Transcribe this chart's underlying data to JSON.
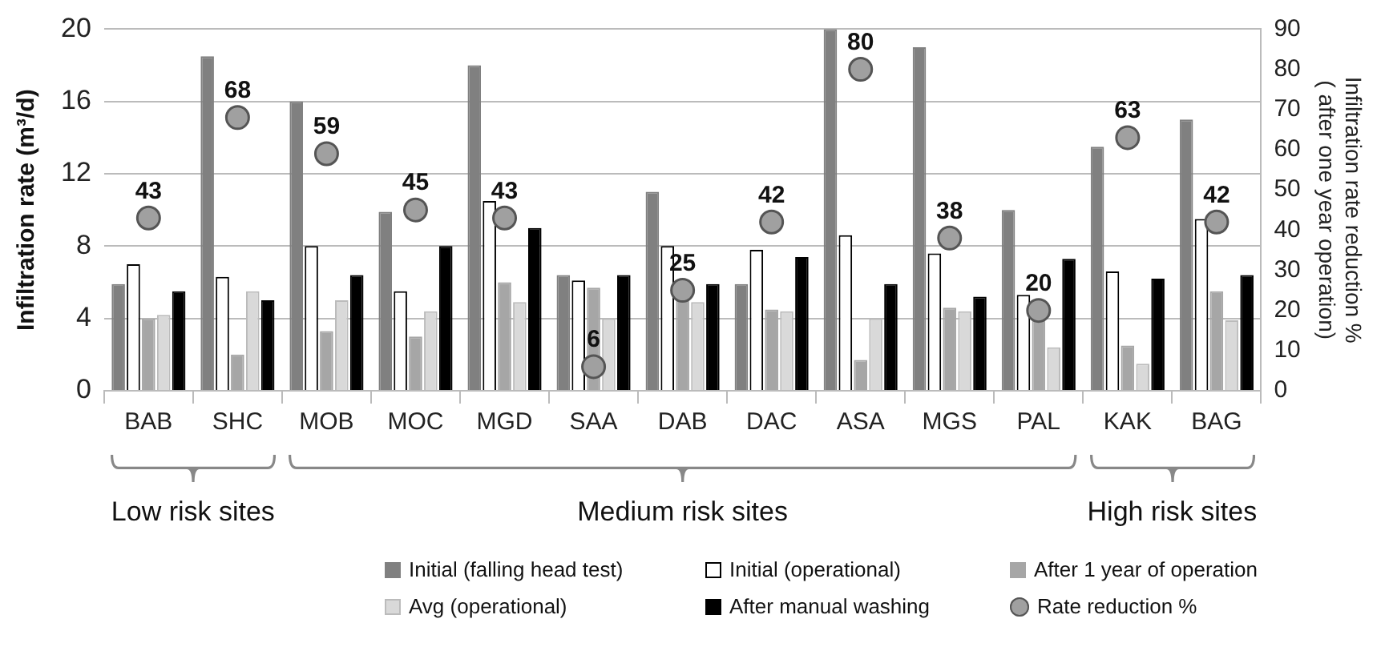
{
  "chart_data": {
    "type": "bar",
    "ylabel": "Infiltration rate (m³/d)",
    "y2label": "Infiltration rate reduction %\n( after one year operation)",
    "categories": [
      "BAB",
      "SHC",
      "MOB",
      "MOC",
      "MGD",
      "SAA",
      "DAB",
      "DAC",
      "ASA",
      "MGS",
      "PAL",
      "KAK",
      "BAG"
    ],
    "series": [
      {
        "name": "Initial (falling head test)",
        "color": "#808080",
        "values": [
          5.9,
          18.5,
          16.0,
          9.9,
          18.0,
          6.4,
          11.0,
          5.9,
          20.0,
          19.0,
          10.0,
          13.5,
          15.0
        ]
      },
      {
        "name": "Initial (operational)",
        "color": "#ffffff",
        "values": [
          7.0,
          6.3,
          8.0,
          5.5,
          10.5,
          6.1,
          8.0,
          7.8,
          8.6,
          7.6,
          5.3,
          6.6,
          9.5
        ]
      },
      {
        "name": "After 1 year of operation",
        "color": "#a6a6a6",
        "values": [
          4.0,
          2.0,
          3.3,
          3.0,
          6.0,
          5.7,
          5.5,
          4.5,
          1.7,
          4.6,
          4.3,
          2.5,
          5.5
        ]
      },
      {
        "name": "Avg (operational)",
        "color": "#d9d9d9",
        "values": [
          4.2,
          5.5,
          5.0,
          4.4,
          4.9,
          4.0,
          4.9,
          4.4,
          4.0,
          4.4,
          2.4,
          1.5,
          3.9
        ]
      },
      {
        "name": "After manual washing",
        "color": "#000000",
        "values": [
          5.5,
          5.0,
          6.4,
          8.0,
          9.0,
          6.4,
          5.9,
          7.4,
          5.9,
          5.2,
          7.3,
          6.2,
          6.4
        ]
      },
      {
        "name": "Rate reduction %",
        "type": "scatter",
        "axis": "y2",
        "color": "#a0a0a0",
        "values": [
          43,
          68,
          59,
          45,
          43,
          6,
          25,
          42,
          80,
          38,
          20,
          63,
          42
        ],
        "value_labels": [
          "43",
          "68",
          "59",
          "45",
          "43",
          "6",
          "25",
          "42",
          "80",
          "38",
          "20",
          "63",
          "42"
        ]
      }
    ],
    "ylim": [
      0,
      20
    ],
    "yticks": [
      0,
      4,
      8,
      12,
      16,
      20
    ],
    "y2lim": [
      0,
      90
    ],
    "y2ticks": [
      0,
      10,
      20,
      30,
      40,
      50,
      60,
      70,
      80,
      90
    ],
    "annotations": [
      "Low risk sites",
      "Medium risk sites",
      "High risk sites"
    ],
    "grid": "y",
    "legend": "bottom",
    "marker": "circle"
  }
}
